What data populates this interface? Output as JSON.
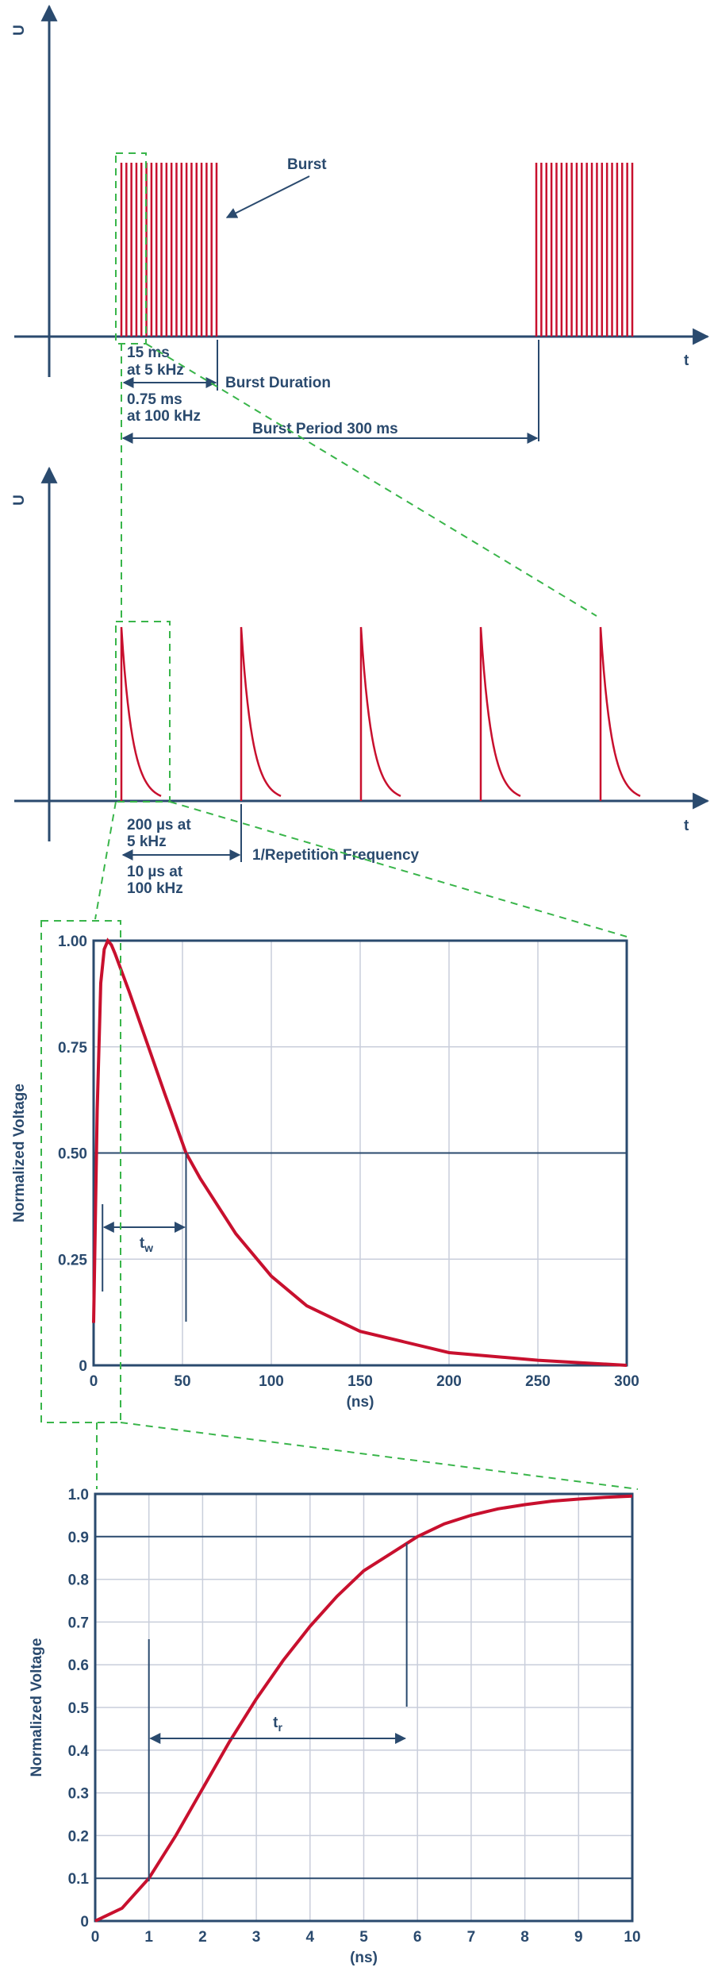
{
  "colors": {
    "axis": "#2a4a6e",
    "signal": "#c8102e",
    "zoom": "#39b54a",
    "grid": "#c9cedb"
  },
  "panel1": {
    "y_axis": "U",
    "x_axis": "t",
    "burst_label": "Burst",
    "dur_5k_line1": "15 ms",
    "dur_5k_line2": "at 5 kHz",
    "burst_duration": "Burst Duration",
    "dur_100k_line1": "0.75 ms",
    "dur_100k_line2": "at 100 kHz",
    "burst_period": "Burst Period 300 ms"
  },
  "panel2": {
    "y_axis": "U",
    "x_axis": "t",
    "period_5k_line1": "200 µs at",
    "period_5k_line2": "5 kHz",
    "rep_freq": "1/Repetition Frequency",
    "period_100k_line1": "10 µs at",
    "period_100k_line2": "100 kHz"
  },
  "chart_data": [
    {
      "type": "line",
      "ylabel": "Normalized Voltage",
      "xlabel": "(ns)",
      "xlim": [
        0,
        300
      ],
      "ylim": [
        0,
        1
      ],
      "x_ticks": [
        "0",
        "50",
        "100",
        "150",
        "200",
        "250",
        "300"
      ],
      "y_ticks": [
        "0",
        "0.25",
        "0.50",
        "0.75",
        "1.00"
      ],
      "grid": true,
      "annotation": "t",
      "annotation_sub": "w",
      "annotation_range": [
        5,
        52
      ],
      "reference_level": 0.5,
      "series": [
        {
          "x": [
            0,
            2,
            4,
            6,
            8,
            10,
            12,
            20,
            30,
            40,
            52,
            60,
            80,
            100,
            120,
            150,
            200,
            250,
            300
          ],
          "values": [
            0.1,
            0.6,
            0.9,
            0.98,
            1.0,
            0.99,
            0.97,
            0.88,
            0.76,
            0.64,
            0.5,
            0.44,
            0.31,
            0.21,
            0.14,
            0.08,
            0.03,
            0.012,
            0.0
          ]
        }
      ]
    },
    {
      "type": "line",
      "ylabel": "Normalized Voltage",
      "xlabel": "(ns)",
      "xlim": [
        0,
        10
      ],
      "ylim": [
        0,
        1
      ],
      "x_ticks": [
        "0",
        "1",
        "2",
        "3",
        "4",
        "5",
        "6",
        "7",
        "8",
        "9",
        "10"
      ],
      "y_ticks": [
        "0",
        "0.1",
        "0.2",
        "0.3",
        "0.4",
        "0.5",
        "0.6",
        "0.7",
        "0.8",
        "0.9",
        "1.0"
      ],
      "grid": true,
      "annotation": "t",
      "annotation_sub": "r",
      "annotation_range": [
        1,
        5.8
      ],
      "reference_levels": [
        0.1,
        0.9
      ],
      "series": [
        {
          "x": [
            0,
            0.5,
            1,
            1.5,
            2,
            2.5,
            3,
            3.5,
            4,
            4.5,
            5,
            5.5,
            6,
            6.5,
            7,
            7.5,
            8,
            8.5,
            9,
            9.5,
            10
          ],
          "values": [
            0,
            0.03,
            0.1,
            0.2,
            0.31,
            0.42,
            0.52,
            0.61,
            0.69,
            0.76,
            0.82,
            0.86,
            0.9,
            0.93,
            0.95,
            0.965,
            0.975,
            0.983,
            0.988,
            0.992,
            0.995
          ]
        }
      ]
    }
  ]
}
